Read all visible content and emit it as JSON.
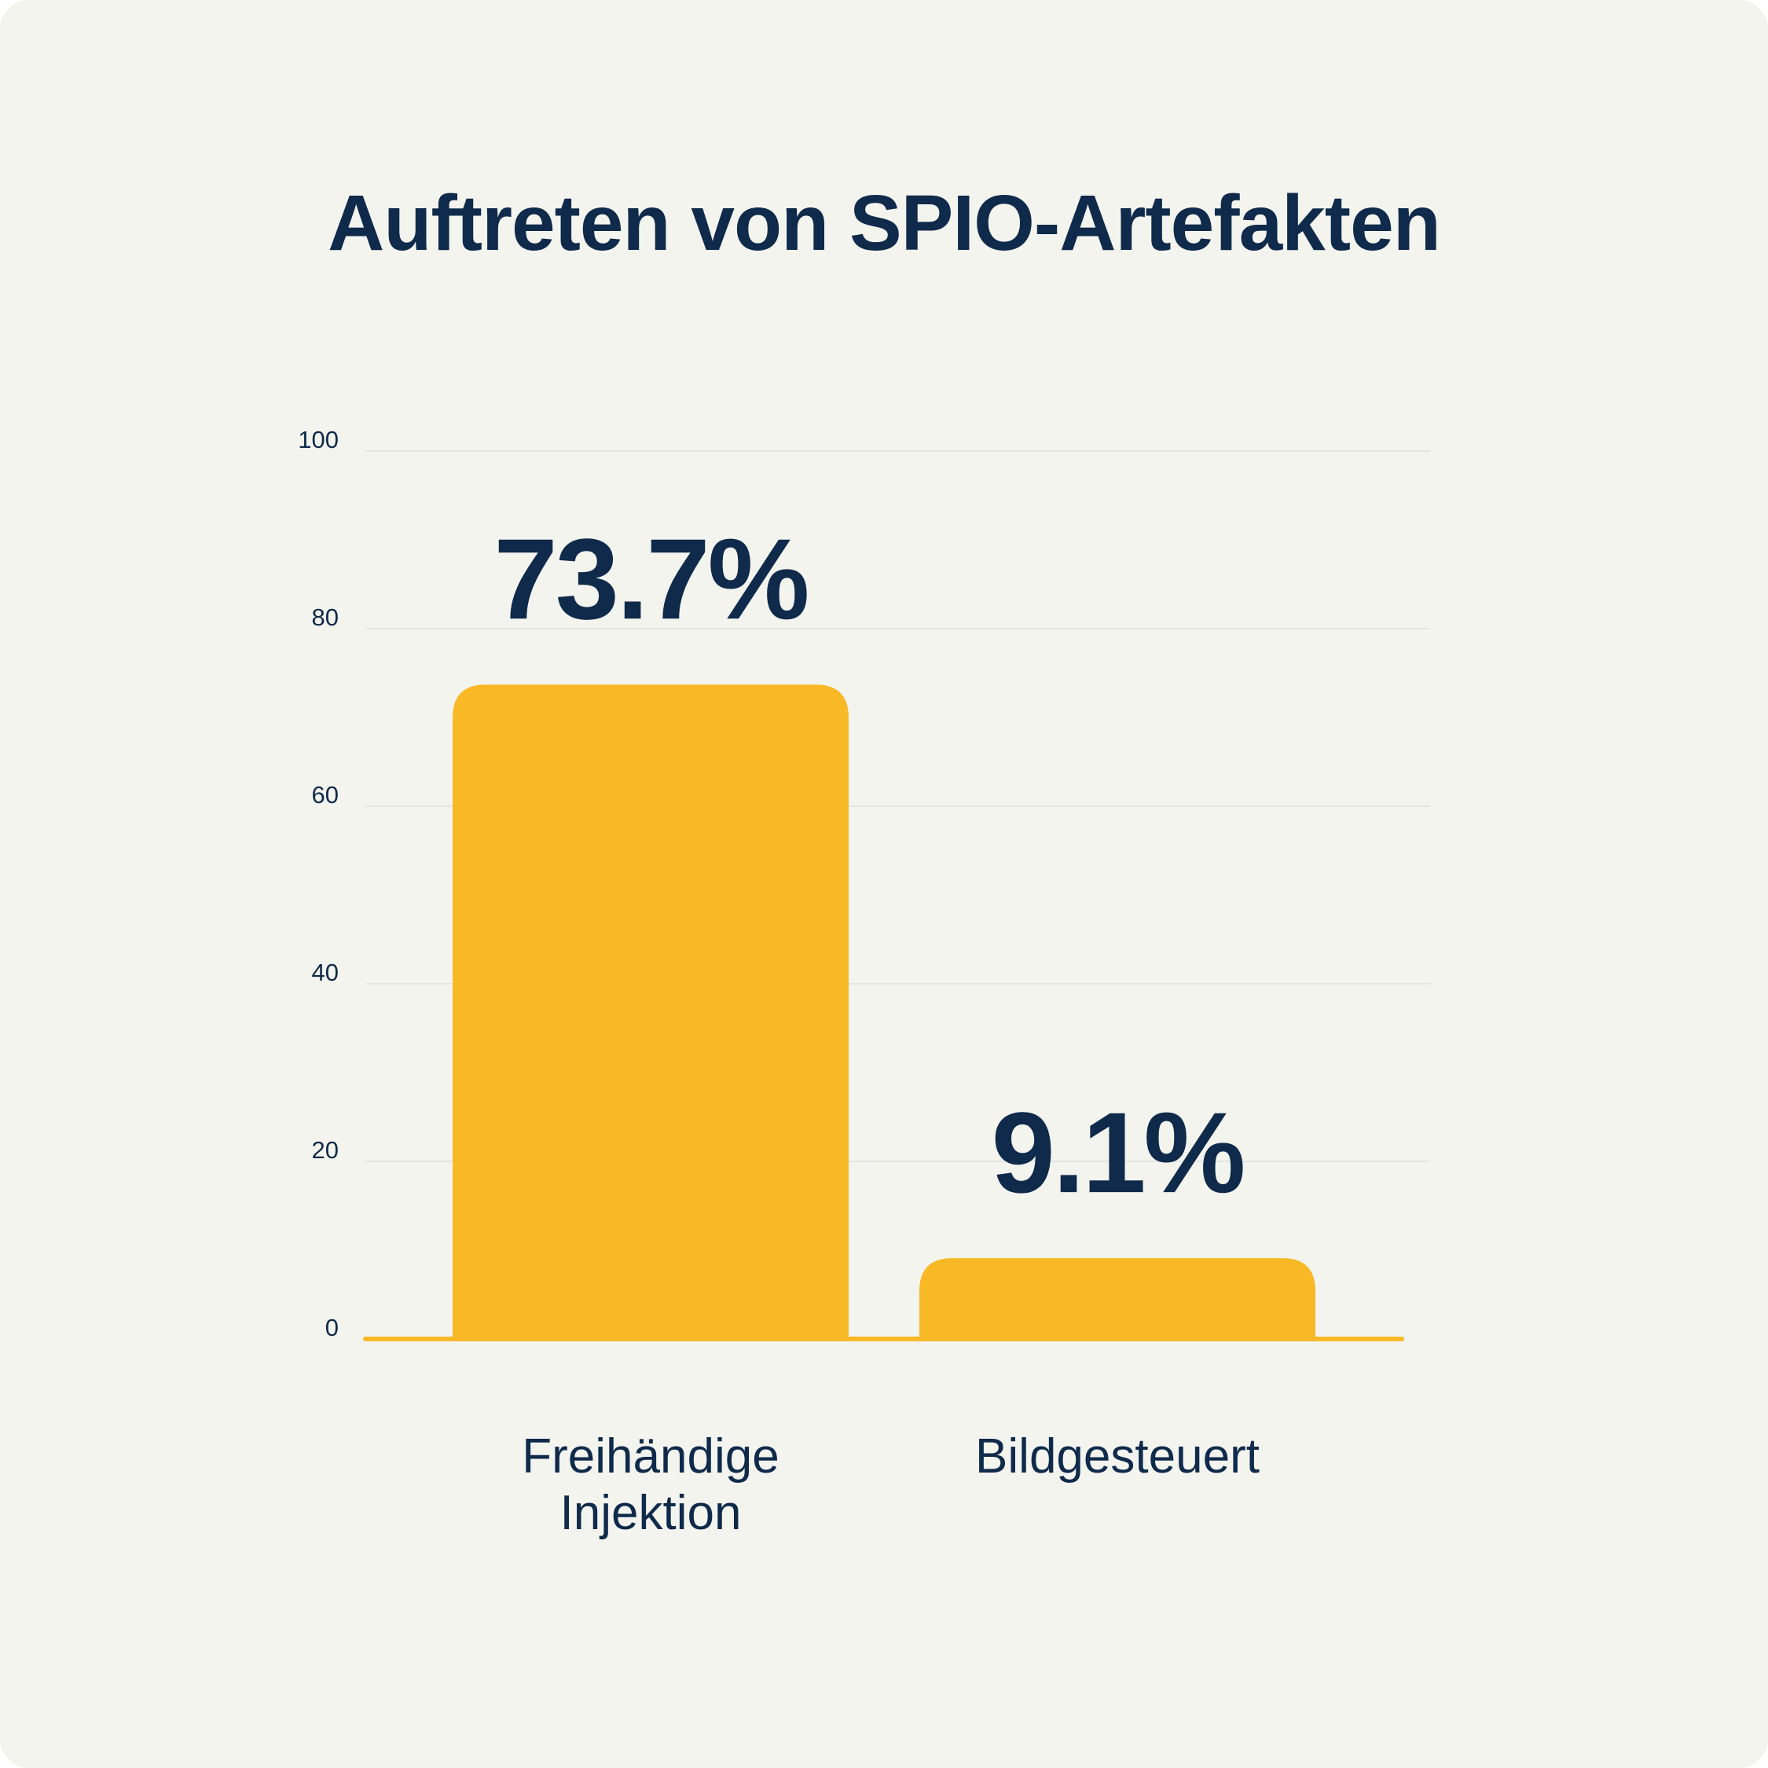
{
  "chart_data": {
    "type": "bar",
    "title": "Auftreten von SPIO-Artefakten",
    "xlabel": "",
    "ylabel": "",
    "categories": [
      [
        "Freihändige",
        "Injektion"
      ],
      [
        "Bildgesteuert"
      ]
    ],
    "values": [
      73.7,
      9.1
    ],
    "value_labels": [
      "73.7%",
      "9.1%"
    ],
    "ylim": [
      0,
      100
    ],
    "yticks": [
      0,
      20,
      40,
      60,
      80,
      100
    ],
    "grid": true,
    "legend": "none"
  },
  "colors": {
    "background": "#f4f4ef",
    "bar": "#f9b826",
    "text": "#0f2a4a",
    "grid": "#e3e5e2"
  }
}
